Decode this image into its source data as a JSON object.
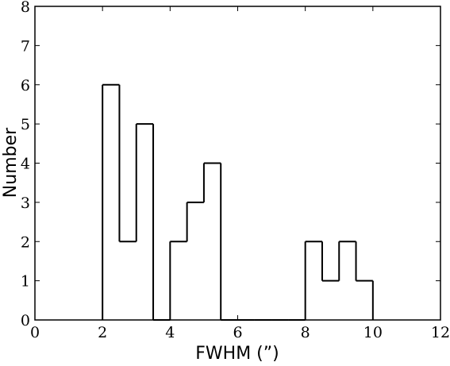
{
  "chart_data": {
    "type": "histogram",
    "xlabel": "FWHM (”)",
    "ylabel": "Number",
    "bins": [
      2,
      2.5,
      3,
      3.5,
      4,
      4.5,
      5,
      5.5,
      6,
      6.5,
      7,
      7.5,
      8,
      8.5,
      9,
      9.5,
      10
    ],
    "values": [
      6,
      2,
      5,
      0,
      2,
      3,
      4,
      0,
      0,
      0,
      0,
      0,
      2,
      1,
      2,
      1
    ],
    "color": "#000000",
    "xlim": [
      0,
      12
    ],
    "xticks": [
      0,
      2,
      4,
      6,
      8,
      10,
      12
    ],
    "ylim": [
      0,
      8
    ],
    "yticks": [
      0,
      1,
      2,
      3,
      4,
      5,
      6,
      7,
      8
    ]
  }
}
